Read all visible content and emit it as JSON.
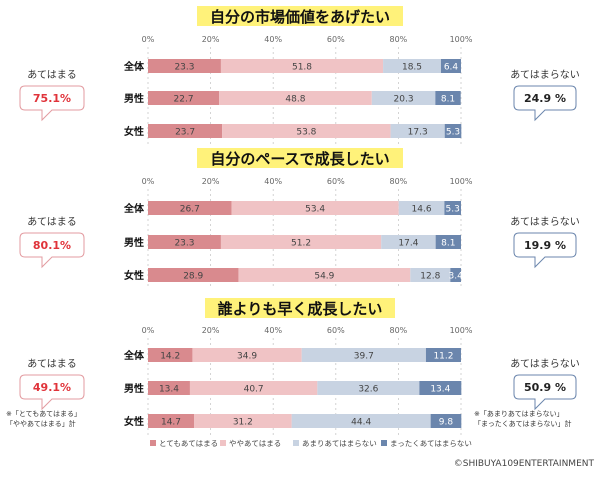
{
  "colors": {
    "strongly_agree": "#d98a8e",
    "somewhat_agree": "#f0c3c5",
    "somewhat_disagree": "#c8d3e2",
    "strongly_disagree": "#6b86ad",
    "title_highlight": "#fff27a",
    "agree_accent": "#e0333a",
    "disagree_accent": "#4a6a95"
  },
  "legend": {
    "items": [
      "とてもあてはまる",
      "ややあてはまる",
      "あまりあてはまらない",
      "まったくあてはまらない"
    ]
  },
  "copyright": "©SHIBUYA109ENTERTAINMENT",
  "chart_data": [
    {
      "type": "bar",
      "orientation": "horizontal-stacked-100",
      "title": "自分の市場価値をあげたい",
      "categories": [
        "全体",
        "男性",
        "女性"
      ],
      "xlim": [
        0,
        100
      ],
      "ticks": [
        "0%",
        "20%",
        "40%",
        "60%",
        "80%",
        "100%"
      ],
      "series": [
        {
          "name": "とてもあてはまる",
          "values": [
            23.3,
            22.7,
            23.7
          ]
        },
        {
          "name": "ややあてはまる",
          "values": [
            51.8,
            48.8,
            53.8
          ]
        },
        {
          "name": "あまりあてはまらない",
          "values": [
            18.5,
            20.3,
            17.3
          ]
        },
        {
          "name": "まったくあてはまらない",
          "values": [
            6.4,
            8.1,
            5.3
          ]
        }
      ],
      "agree_label": "あてはまる",
      "agree_value": "75.1%",
      "disagree_label": "あてはまらない",
      "disagree_value": "24.9 %"
    },
    {
      "type": "bar",
      "orientation": "horizontal-stacked-100",
      "title": "自分のペースで成長したい",
      "categories": [
        "全体",
        "男性",
        "女性"
      ],
      "xlim": [
        0,
        100
      ],
      "ticks": [
        "0%",
        "20%",
        "40%",
        "60%",
        "80%",
        "100%"
      ],
      "series": [
        {
          "name": "とてもあてはまる",
          "values": [
            26.7,
            23.3,
            28.9
          ]
        },
        {
          "name": "ややあてはまる",
          "values": [
            53.4,
            51.2,
            54.9
          ]
        },
        {
          "name": "あまりあてはまらない",
          "values": [
            14.6,
            17.4,
            12.8
          ]
        },
        {
          "name": "まったくあてはまらない",
          "values": [
            5.3,
            8.1,
            3.4
          ]
        }
      ],
      "agree_label": "あてはまる",
      "agree_value": "80.1%",
      "disagree_label": "あてはまらない",
      "disagree_value": "19.9 %"
    },
    {
      "type": "bar",
      "orientation": "horizontal-stacked-100",
      "title": "誰よりも早く成長したい",
      "categories": [
        "全体",
        "男性",
        "女性"
      ],
      "xlim": [
        0,
        100
      ],
      "ticks": [
        "0%",
        "20%",
        "40%",
        "60%",
        "80%",
        "100%"
      ],
      "series": [
        {
          "name": "とてもあてはまる",
          "values": [
            14.2,
            13.4,
            14.7
          ]
        },
        {
          "name": "ややあてはまる",
          "values": [
            34.9,
            40.7,
            31.2
          ]
        },
        {
          "name": "あまりあてはまらない",
          "values": [
            39.7,
            32.6,
            44.4
          ]
        },
        {
          "name": "まったくあてはまらない",
          "values": [
            11.2,
            13.4,
            9.8
          ]
        }
      ],
      "agree_label": "あてはまる",
      "agree_value": "49.1%",
      "disagree_label": "あてはまらない",
      "disagree_value": "50.9 %",
      "agree_note": [
        "※「とてもあてはまる」",
        "「ややあてはまる」計"
      ],
      "disagree_note": [
        "※「あまりあてはまらない」",
        "「まったくあてはまらない」計"
      ]
    }
  ]
}
